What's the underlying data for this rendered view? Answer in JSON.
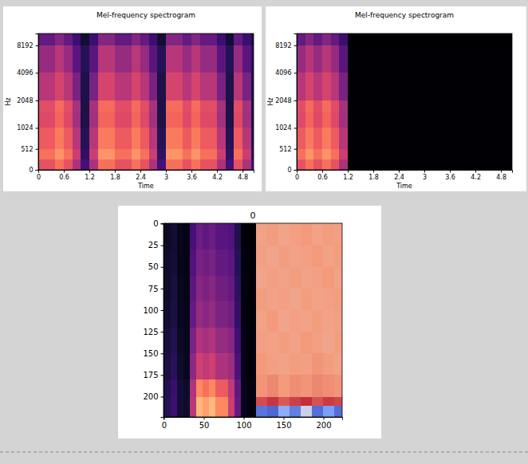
{
  "chart_data": [
    {
      "type": "heatmap",
      "title": "Mel-frequency spectrogram",
      "xlabel": "Time",
      "ylabel": "Hz",
      "xlim": [
        0,
        5.06
      ],
      "xticks": [
        0,
        0.6,
        1.2,
        1.8,
        2.4,
        3,
        3.6,
        4.2,
        4.8
      ],
      "ylim": [
        0,
        11025
      ],
      "yticks": [
        0,
        512,
        1024,
        2048,
        4096,
        8192
      ],
      "color": "magma",
      "color_range": [
        -80,
        0
      ],
      "x_edges": [
        0,
        0.2,
        0.4,
        0.6,
        0.8,
        1,
        1.2,
        1.4,
        1.6,
        1.8,
        2,
        2.2,
        2.4,
        2.6,
        2.8,
        3,
        3.2,
        3.4,
        3.6,
        3.8,
        4,
        4.2,
        4.4,
        4.6,
        4.8,
        5,
        5.06
      ],
      "y_edges": [
        0,
        256,
        512,
        1024,
        1536,
        2048,
        4096,
        8192,
        11025
      ],
      "cells": [
        [
          -30,
          -30,
          -24,
          -30,
          -42,
          -62,
          -42,
          -24,
          -24,
          -30,
          -30,
          -24,
          -30,
          -42,
          -62,
          -24,
          -24,
          -30,
          -24,
          -30,
          -30,
          -42,
          -62,
          -30,
          -42,
          -62
        ],
        [
          -24,
          -24,
          -18,
          -24,
          -36,
          -66,
          -36,
          -18,
          -18,
          -24,
          -24,
          -18,
          -24,
          -36,
          -66,
          -18,
          -18,
          -24,
          -18,
          -24,
          -24,
          -36,
          -66,
          -24,
          -36,
          -66
        ],
        [
          -28,
          -28,
          -22,
          -28,
          -40,
          -68,
          -40,
          -22,
          -22,
          -28,
          -28,
          -22,
          -28,
          -40,
          -68,
          -22,
          -22,
          -28,
          -22,
          -28,
          -28,
          -40,
          -68,
          -28,
          -40,
          -68
        ],
        [
          -32,
          -32,
          -26,
          -32,
          -44,
          -70,
          -44,
          -26,
          -26,
          -32,
          -32,
          -26,
          -32,
          -44,
          -70,
          -26,
          -26,
          -32,
          -26,
          -32,
          -32,
          -44,
          -70,
          -32,
          -44,
          -70
        ],
        [
          -31,
          -31,
          -25,
          -31,
          -43,
          -70,
          -43,
          -25,
          -25,
          -31,
          -31,
          -25,
          -31,
          -43,
          -70,
          -25,
          -25,
          -31,
          -25,
          -31,
          -31,
          -43,
          -70,
          -31,
          -43,
          -70
        ],
        [
          -40,
          -40,
          -34,
          -40,
          -52,
          -70,
          -52,
          -34,
          -34,
          -40,
          -40,
          -34,
          -40,
          -52,
          -70,
          -34,
          -34,
          -40,
          -34,
          -40,
          -40,
          -52,
          -70,
          -40,
          -52,
          -70
        ],
        [
          -46,
          -46,
          -40,
          -46,
          -58,
          -68,
          -58,
          -40,
          -40,
          -46,
          -46,
          -40,
          -46,
          -58,
          -68,
          -40,
          -40,
          -46,
          -40,
          -46,
          -46,
          -58,
          -68,
          -46,
          -58,
          -68
        ],
        [
          -56,
          -56,
          -50,
          -56,
          -64,
          -72,
          -64,
          -50,
          -50,
          -56,
          -56,
          -50,
          -56,
          -64,
          -72,
          -50,
          -50,
          -56,
          -50,
          -56,
          -56,
          -64,
          -72,
          -56,
          -64,
          -72
        ]
      ]
    },
    {
      "type": "heatmap",
      "title": "Mel-frequency spectrogram",
      "xlabel": "Time",
      "ylabel": "Hz",
      "xlim": [
        0,
        5.06
      ],
      "xticks": [
        0,
        0.6,
        1.2,
        1.8,
        2.4,
        3,
        3.6,
        4.2,
        4.8
      ],
      "ylim": [
        0,
        11025
      ],
      "yticks": [
        0,
        512,
        1024,
        2048,
        4096,
        8192
      ],
      "color": "magma",
      "color_range": [
        -80,
        0
      ],
      "x_edges": [
        0,
        0.2,
        0.4,
        0.6,
        0.8,
        1,
        1.2,
        1.4,
        1.6,
        1.8,
        2,
        2.2,
        2.4,
        2.6,
        2.8,
        3,
        3.2,
        3.4,
        3.6,
        3.8,
        4,
        4.2,
        4.4,
        4.6,
        4.8,
        5,
        5.06
      ],
      "y_edges": [
        0,
        256,
        512,
        1024,
        1536,
        2048,
        4096,
        8192,
        11025
      ],
      "cells": [
        [
          -30,
          -24,
          -30,
          -24,
          -30,
          -42,
          -80,
          -80,
          -80,
          -80,
          -80,
          -80,
          -80,
          -80,
          -80,
          -80,
          -80,
          -80,
          -80,
          -80,
          -80,
          -80,
          -80,
          -80,
          -80,
          -80
        ],
        [
          -24,
          -18,
          -24,
          -18,
          -24,
          -36,
          -80,
          -80,
          -80,
          -80,
          -80,
          -80,
          -80,
          -80,
          -80,
          -80,
          -80,
          -80,
          -80,
          -80,
          -80,
          -80,
          -80,
          -80,
          -80,
          -80
        ],
        [
          -28,
          -22,
          -28,
          -22,
          -28,
          -40,
          -80,
          -80,
          -80,
          -80,
          -80,
          -80,
          -80,
          -80,
          -80,
          -80,
          -80,
          -80,
          -80,
          -80,
          -80,
          -80,
          -80,
          -80,
          -80,
          -80
        ],
        [
          -32,
          -26,
          -32,
          -26,
          -32,
          -44,
          -80,
          -80,
          -80,
          -80,
          -80,
          -80,
          -80,
          -80,
          -80,
          -80,
          -80,
          -80,
          -80,
          -80,
          -80,
          -80,
          -80,
          -80,
          -80,
          -80
        ],
        [
          -31,
          -25,
          -31,
          -25,
          -31,
          -43,
          -80,
          -80,
          -80,
          -80,
          -80,
          -80,
          -80,
          -80,
          -80,
          -80,
          -80,
          -80,
          -80,
          -80,
          -80,
          -80,
          -80,
          -80,
          -80,
          -80
        ],
        [
          -40,
          -34,
          -40,
          -34,
          -40,
          -52,
          -80,
          -80,
          -80,
          -80,
          -80,
          -80,
          -80,
          -80,
          -80,
          -80,
          -80,
          -80,
          -80,
          -80,
          -80,
          -80,
          -80,
          -80,
          -80,
          -80
        ],
        [
          -46,
          -40,
          -46,
          -40,
          -46,
          -58,
          -80,
          -80,
          -80,
          -80,
          -80,
          -80,
          -80,
          -80,
          -80,
          -80,
          -80,
          -80,
          -80,
          -80,
          -80,
          -80,
          -80,
          -80,
          -80,
          -80
        ],
        [
          -56,
          -50,
          -56,
          -50,
          -56,
          -64,
          -80,
          -80,
          -80,
          -80,
          -80,
          -80,
          -80,
          -80,
          -80,
          -80,
          -80,
          -80,
          -80,
          -80,
          -80,
          -80,
          -80,
          -80,
          -80,
          -80
        ]
      ]
    },
    {
      "type": "heatmap",
      "title": "0",
      "xlim": [
        -0.5,
        223.5
      ],
      "xticks": [
        0,
        50,
        100,
        150,
        200
      ],
      "ylim": [
        223.5,
        -0.5
      ],
      "yticks": [
        0,
        25,
        50,
        75,
        100,
        125,
        150,
        175,
        200
      ],
      "color_range": [
        0,
        1
      ],
      "series": [
        {
          "color": "magma",
          "x_edges": [
            -0.5,
            8,
            16,
            24,
            32,
            40,
            48,
            56,
            64,
            72,
            80,
            88,
            96,
            104,
            115
          ],
          "y_edges": [
            -0.5,
            30,
            60,
            90,
            120,
            150,
            180,
            200,
            223.5
          ],
          "cells": [
            [
              0.07,
              0.09,
              0.05,
              0.04,
              0.23,
              0.32,
              0.29,
              0.32,
              0.27,
              0.27,
              0.25,
              0.14,
              0.02,
              0.01
            ],
            [
              0.08,
              0.1,
              0.05,
              0.04,
              0.25,
              0.35,
              0.33,
              0.35,
              0.3,
              0.3,
              0.28,
              0.15,
              0.03,
              0.02
            ],
            [
              0.08,
              0.11,
              0.06,
              0.04,
              0.28,
              0.39,
              0.36,
              0.39,
              0.33,
              0.33,
              0.3,
              0.17,
              0.03,
              0.02
            ],
            [
              0.09,
              0.12,
              0.06,
              0.05,
              0.3,
              0.42,
              0.39,
              0.42,
              0.36,
              0.36,
              0.33,
              0.18,
              0.03,
              0.02
            ],
            [
              0.11,
              0.14,
              0.07,
              0.06,
              0.35,
              0.49,
              0.46,
              0.49,
              0.42,
              0.42,
              0.39,
              0.21,
              0.04,
              0.02
            ],
            [
              0.12,
              0.16,
              0.08,
              0.06,
              0.4,
              0.56,
              0.52,
              0.56,
              0.48,
              0.48,
              0.44,
              0.24,
              0.04,
              0.02
            ],
            [
              0.14,
              0.19,
              0.1,
              0.08,
              0.48,
              0.75,
              0.7,
              0.75,
              0.65,
              0.65,
              0.52,
              0.29,
              0.05,
              0.03
            ],
            [
              0.15,
              0.2,
              0.1,
              0.08,
              0.5,
              0.85,
              0.8,
              0.85,
              0.75,
              0.75,
              0.55,
              0.3,
              0.05,
              0.03
            ]
          ]
        },
        {
          "color": "coolwarm",
          "x_edges": [
            115,
            129,
            143,
            157,
            171,
            185,
            199,
            213,
            223.5
          ],
          "y_edges": [
            -0.5,
            25,
            50,
            75,
            100,
            125,
            150,
            175,
            200,
            211,
            223.5
          ],
          "cells": [
            [
              0.72,
              0.74,
              0.71,
              0.73,
              0.75,
              0.72,
              0.74,
              0.73
            ],
            [
              0.73,
              0.71,
              0.74,
              0.72,
              0.73,
              0.75,
              0.72,
              0.74
            ],
            [
              0.71,
              0.73,
              0.72,
              0.74,
              0.72,
              0.73,
              0.75,
              0.72
            ],
            [
              0.74,
              0.72,
              0.73,
              0.71,
              0.74,
              0.72,
              0.73,
              0.74
            ],
            [
              0.72,
              0.75,
              0.71,
              0.73,
              0.72,
              0.74,
              0.72,
              0.73
            ],
            [
              0.73,
              0.72,
              0.74,
              0.72,
              0.75,
              0.73,
              0.71,
              0.74
            ],
            [
              0.75,
              0.73,
              0.72,
              0.74,
              0.73,
              0.76,
              0.74,
              0.72
            ],
            [
              0.76,
              0.78,
              0.75,
              0.77,
              0.76,
              0.78,
              0.77,
              0.76
            ],
            [
              0.88,
              0.92,
              0.86,
              0.9,
              0.93,
              0.87,
              0.91,
              0.89
            ],
            [
              0.12,
              0.08,
              0.3,
              0.15,
              0.45,
              0.1,
              0.25,
              0.1
            ]
          ]
        }
      ]
    }
  ]
}
